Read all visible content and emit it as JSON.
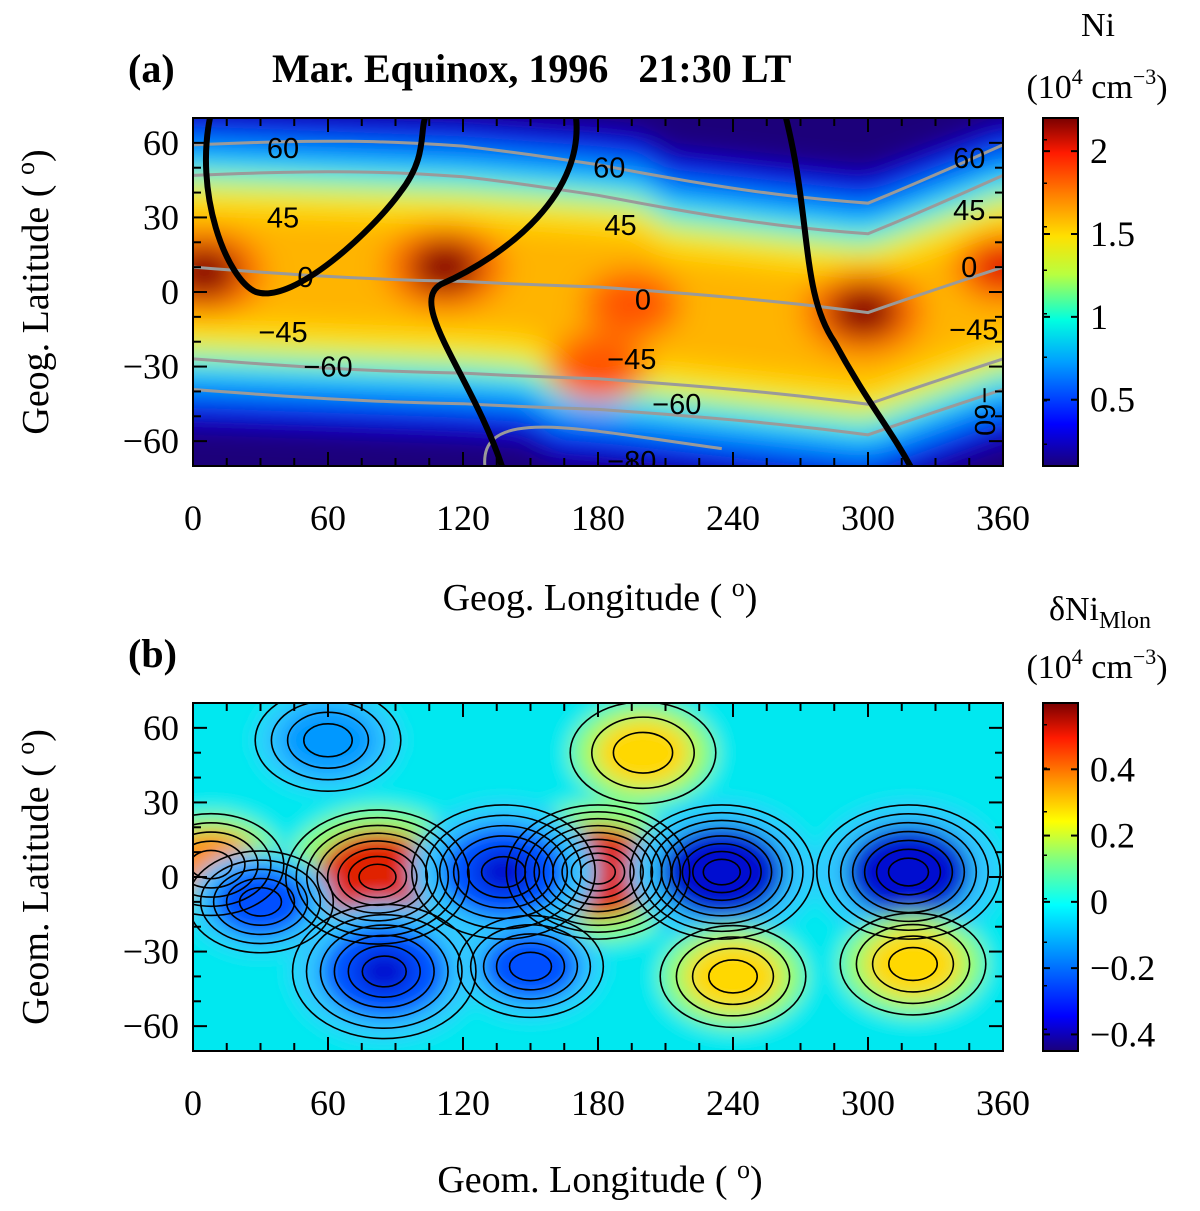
{
  "chart_data": [
    {
      "type": "heatmap",
      "panel_label": "(a)",
      "title": "Mar. Equinox, 1996   21:30 LT",
      "xlabel": "Geog. Longitude ( o)",
      "ylabel": "Geog. Latitude ( o)",
      "xlim": [
        0,
        360
      ],
      "ylim": [
        -70,
        70
      ],
      "xticks": [
        "0",
        "60",
        "120",
        "180",
        "240",
        "300",
        "360"
      ],
      "yticks": [
        "60",
        "30",
        "0",
        "−30",
        "−60"
      ],
      "colorbar": {
        "label": "Ni",
        "units": "(10^4 cm^-3)",
        "range": [
          0.1,
          2.2
        ],
        "ticks": [
          "2",
          "1.5",
          "1",
          "0.5"
        ]
      },
      "maxima": [
        {
          "lon": 5,
          "lat": 8,
          "value": 2.1
        },
        {
          "lon": 112,
          "lat": 10,
          "value": 2.2
        },
        {
          "lon": 195,
          "lat": -5,
          "value": 1.9
        },
        {
          "lon": 298,
          "lat": -8,
          "value": 2.2
        },
        {
          "lon": 360,
          "lat": 10,
          "value": 2.0
        },
        {
          "lon": 180,
          "lat": -30,
          "value": 1.8
        }
      ],
      "dip_equator": [
        [
          0,
          10
        ],
        [
          60,
          8
        ],
        [
          120,
          6
        ],
        [
          180,
          2
        ],
        [
          240,
          -4
        ],
        [
          300,
          -10
        ],
        [
          360,
          10
        ]
      ],
      "contour_labels": [
        "60",
        "45",
        "0",
        "−45",
        "−60",
        "−80"
      ],
      "contour_label_values": [
        60,
        45,
        0,
        -45,
        -60,
        -80
      ]
    },
    {
      "type": "heatmap",
      "panel_label": "(b)",
      "xlabel": "Geom. Longitude ( o)",
      "ylabel": "Geom. Latitude ( o)",
      "xlim": [
        0,
        360
      ],
      "ylim": [
        -70,
        70
      ],
      "xticks": [
        "0",
        "60",
        "120",
        "180",
        "240",
        "300",
        "360"
      ],
      "yticks": [
        "60",
        "30",
        "0",
        "−30",
        "−60"
      ],
      "colorbar": {
        "label": "δNi_Mlon",
        "units": "(10^4 cm^-3)",
        "range": [
          -0.45,
          0.6
        ],
        "ticks": [
          "0.4",
          "0.2",
          "0",
          "−0.2",
          "−0.4"
        ]
      },
      "extrema": [
        {
          "lon": 8,
          "lat": 5,
          "value": 0.3
        },
        {
          "lon": 82,
          "lat": 0,
          "value": 0.5
        },
        {
          "lon": 180,
          "lat": 2,
          "value": 0.55
        },
        {
          "lon": 138,
          "lat": 2,
          "value": -0.38
        },
        {
          "lon": 235,
          "lat": 2,
          "value": -0.45
        },
        {
          "lon": 318,
          "lat": 2,
          "value": -0.4
        },
        {
          "lon": 85,
          "lat": -38,
          "value": -0.38
        },
        {
          "lon": 150,
          "lat": -36,
          "value": -0.32
        },
        {
          "lon": 30,
          "lat": -10,
          "value": -0.3
        },
        {
          "lon": 60,
          "lat": 55,
          "value": -0.25
        },
        {
          "lon": 200,
          "lat": 50,
          "value": 0.2
        },
        {
          "lon": 240,
          "lat": -40,
          "value": 0.25
        },
        {
          "lon": 320,
          "lat": -35,
          "value": 0.22
        }
      ]
    }
  ]
}
